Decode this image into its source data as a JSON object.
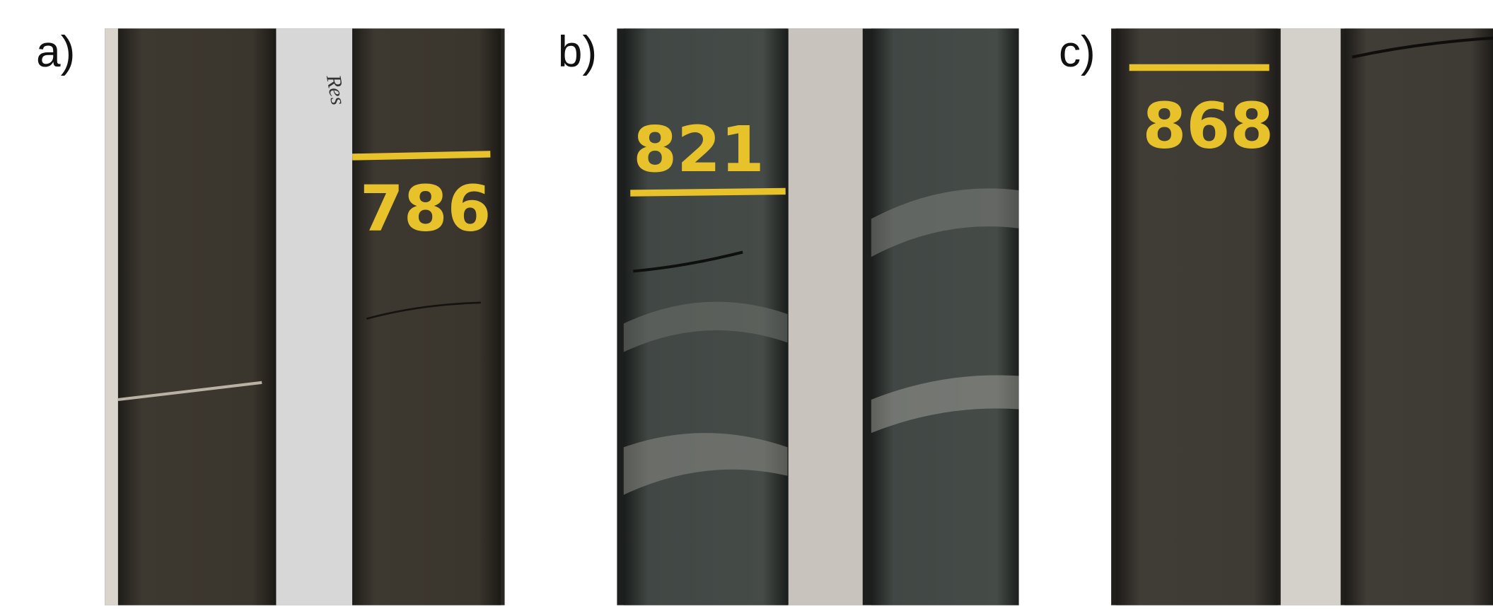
{
  "panels": [
    {
      "label": "a)",
      "marking": "786",
      "note": "Res"
    },
    {
      "label": "b)",
      "marking": "821"
    },
    {
      "label": "c)",
      "marking": "868"
    }
  ]
}
